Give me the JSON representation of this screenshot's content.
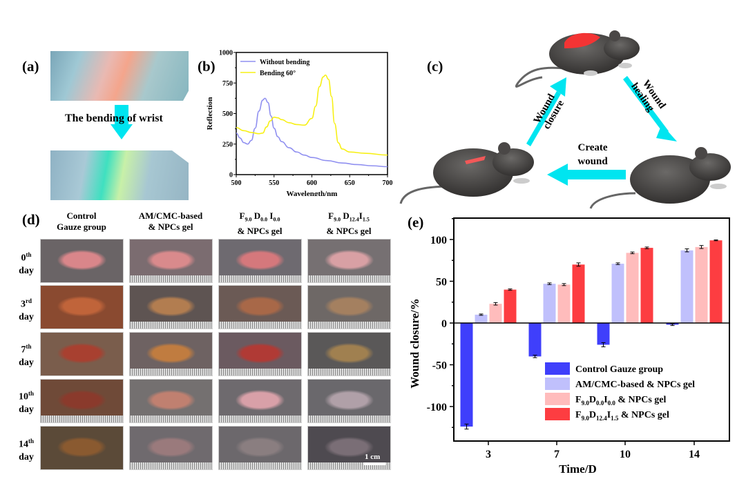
{
  "panels": {
    "a": {
      "label": "(a)",
      "caption": "The bending of wrist"
    },
    "b": {
      "label": "(b)"
    },
    "c": {
      "label": "(c)",
      "steps": {
        "closure": [
          "Wound",
          "closure"
        ],
        "healing": [
          "Wound",
          "healing"
        ],
        "create": [
          "Create",
          "wound"
        ]
      }
    },
    "d": {
      "label": "(d)",
      "columns": [
        {
          "line1": "Control",
          "line2": "Gauze group"
        },
        {
          "line1": "AM/CMC-based",
          "line2": "& NPCs gel"
        },
        {
          "line1_parts": [
            "F",
            "9.0",
            " D",
            "0.0",
            " I",
            "0.0"
          ],
          "line2": "& NPCs gel"
        },
        {
          "line1_parts": [
            "F",
            "9.0",
            " D",
            "12.4",
            "I",
            "1.5"
          ],
          "line2": "& NPCs gel"
        }
      ],
      "rows": [
        {
          "num": "0",
          "sup": "th",
          "word": "day"
        },
        {
          "num": "3",
          "sup": "rd",
          "word": "day"
        },
        {
          "num": "7",
          "sup": "th",
          "word": "day"
        },
        {
          "num": "10",
          "sup": "th",
          "word": "day"
        },
        {
          "num": "14",
          "sup": "th",
          "word": "day"
        }
      ],
      "scale_bar": "1 cm"
    },
    "e": {
      "label": "(e)"
    }
  },
  "colors": {
    "arrow": "#00e5f0",
    "control": "#3f3ffb",
    "am": "#c0c0fc",
    "f0": "#ffbcbc",
    "f12": "#fd3d41",
    "blue_line": "#8f8ff0",
    "yellow_line": "#f7f014"
  },
  "chart_data": [
    {
      "type": "line",
      "panel": "b",
      "title": "",
      "xlabel": "Wavelength/nm",
      "ylabel": "Reflection",
      "xlim": [
        500,
        700
      ],
      "ylim": [
        0,
        1000
      ],
      "xticks": [
        500,
        550,
        600,
        650,
        700
      ],
      "yticks": [
        0,
        250,
        500,
        750,
        1000
      ],
      "legend_position": "top-left",
      "series": [
        {
          "name": "Without bending",
          "x": [
            500,
            505,
            510,
            515,
            520,
            525,
            530,
            535,
            538,
            542,
            546,
            550,
            555,
            560,
            570,
            580,
            590,
            600,
            620,
            640,
            660,
            680,
            700
          ],
          "y": [
            340,
            300,
            262,
            250,
            280,
            380,
            520,
            610,
            625,
            590,
            480,
            380,
            310,
            270,
            220,
            185,
            160,
            140,
            115,
            95,
            82,
            72,
            65
          ]
        },
        {
          "name": "Bending 60°",
          "x": [
            500,
            510,
            520,
            530,
            535,
            540,
            545,
            550,
            555,
            560,
            570,
            580,
            590,
            600,
            605,
            610,
            615,
            618,
            622,
            626,
            630,
            635,
            640,
            650,
            670,
            700
          ],
          "y": [
            385,
            360,
            345,
            335,
            340,
            390,
            440,
            470,
            465,
            450,
            425,
            410,
            405,
            460,
            560,
            720,
            800,
            815,
            780,
            640,
            420,
            260,
            210,
            185,
            175,
            160
          ]
        }
      ]
    },
    {
      "type": "bar",
      "panel": "e",
      "title": "",
      "xlabel": "Time/D",
      "ylabel": "Wound closure/%",
      "categories": [
        "3",
        "7",
        "10",
        "14"
      ],
      "ylim": [
        -150,
        125
      ],
      "yticks": [
        -100,
        -50,
        0,
        50,
        100
      ],
      "legend_position": "bottom-right",
      "series": [
        {
          "name": "Control Gauze group",
          "values": [
            -124,
            -40,
            -26,
            -2
          ],
          "errors": [
            3,
            1.5,
            2.5,
            1
          ]
        },
        {
          "name": "AM/CMC-based & NPCs gel",
          "values": [
            10,
            47,
            71,
            87
          ],
          "errors": [
            0.8,
            1,
            1,
            1.8
          ]
        },
        {
          "name_parts": [
            "F",
            "9.0",
            "D",
            "0.0",
            "I",
            "0.0",
            " & NPCs gel"
          ],
          "values": [
            23,
            46,
            84,
            91
          ],
          "errors": [
            1.5,
            1.2,
            1,
            1.8
          ]
        },
        {
          "name_parts": [
            "F",
            "9.0",
            "D",
            "12.4",
            "I",
            "1.5",
            " & NPCs gel"
          ],
          "values": [
            40,
            70,
            90,
            99
          ],
          "errors": [
            0.8,
            2,
            1,
            0.5
          ]
        }
      ]
    }
  ]
}
